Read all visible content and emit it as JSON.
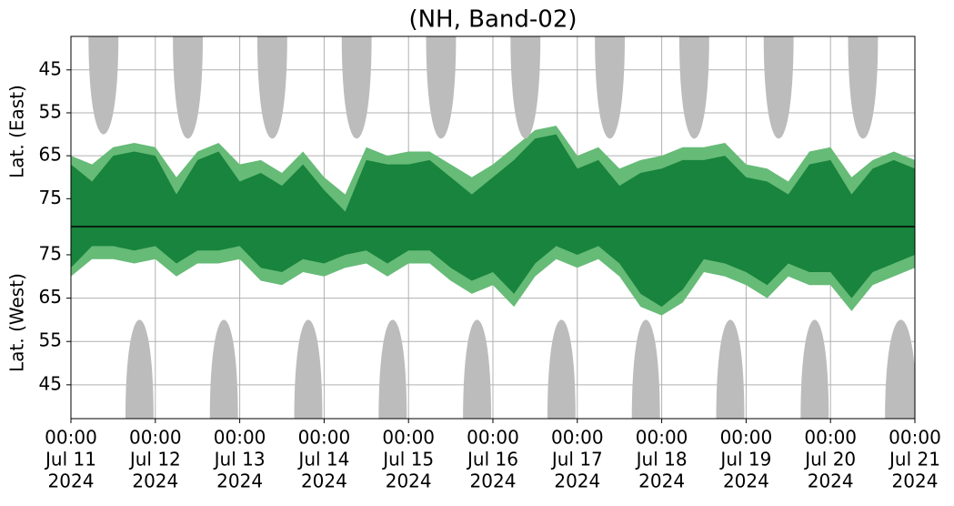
{
  "chart_data": {
    "type": "area",
    "title": "(NH, Band-02)",
    "grid": true,
    "xlim": [
      "2024-07-11 00:00",
      "2024-07-21 00:00"
    ],
    "xticks": [
      {
        "value": "2024-07-11 00:00",
        "label": [
          "00:00",
          "Jul 11",
          "2024"
        ]
      },
      {
        "value": "2024-07-12 00:00",
        "label": [
          "00:00",
          "Jul 12",
          "2024"
        ]
      },
      {
        "value": "2024-07-13 00:00",
        "label": [
          "00:00",
          "Jul 13",
          "2024"
        ]
      },
      {
        "value": "2024-07-14 00:00",
        "label": [
          "00:00",
          "Jul 14",
          "2024"
        ]
      },
      {
        "value": "2024-07-15 00:00",
        "label": [
          "00:00",
          "Jul 15",
          "2024"
        ]
      },
      {
        "value": "2024-07-16 00:00",
        "label": [
          "00:00",
          "Jul 16",
          "2024"
        ]
      },
      {
        "value": "2024-07-17 00:00",
        "label": [
          "00:00",
          "Jul 17",
          "2024"
        ]
      },
      {
        "value": "2024-07-18 00:00",
        "label": [
          "00:00",
          "Jul 18",
          "2024"
        ]
      },
      {
        "value": "2024-07-19 00:00",
        "label": [
          "00:00",
          "Jul 19",
          "2024"
        ]
      },
      {
        "value": "2024-07-20 00:00",
        "label": [
          "00:00",
          "Jul 20",
          "2024"
        ]
      },
      {
        "value": "2024-07-21 00:00",
        "label": [
          "00:00",
          "Jul 21",
          "2024"
        ]
      }
    ],
    "x": [
      "2024-07-11 00:00",
      "2024-07-11 06:00",
      "2024-07-11 12:00",
      "2024-07-11 18:00",
      "2024-07-12 00:00",
      "2024-07-12 06:00",
      "2024-07-12 12:00",
      "2024-07-12 18:00",
      "2024-07-13 00:00",
      "2024-07-13 06:00",
      "2024-07-13 12:00",
      "2024-07-13 18:00",
      "2024-07-14 00:00",
      "2024-07-14 06:00",
      "2024-07-14 12:00",
      "2024-07-14 18:00",
      "2024-07-15 00:00",
      "2024-07-15 06:00",
      "2024-07-15 12:00",
      "2024-07-15 18:00",
      "2024-07-16 00:00",
      "2024-07-16 06:00",
      "2024-07-16 12:00",
      "2024-07-16 18:00",
      "2024-07-17 00:00",
      "2024-07-17 06:00",
      "2024-07-17 12:00",
      "2024-07-17 18:00",
      "2024-07-18 00:00",
      "2024-07-18 06:00",
      "2024-07-18 12:00",
      "2024-07-18 18:00",
      "2024-07-19 00:00",
      "2024-07-19 06:00",
      "2024-07-19 12:00",
      "2024-07-19 18:00",
      "2024-07-20 00:00",
      "2024-07-20 06:00",
      "2024-07-20 12:00",
      "2024-07-20 18:00",
      "2024-07-21 00:00"
    ],
    "panels": [
      {
        "ylabel": "Lat. (East)",
        "ylim": [
          37.2,
          81.5
        ],
        "yticks": [
          45,
          55,
          65,
          75
        ],
        "series": [
          {
            "color": "#66bb77",
            "values": [
              65,
              67,
              63,
              62,
              63,
              70,
              64,
              62,
              67,
              66,
              69,
              64,
              70,
              74,
              63,
              65,
              64,
              64,
              67,
              70,
              67,
              63,
              59,
              58,
              65,
              63,
              68,
              66,
              65,
              63,
              63,
              62,
              67,
              68,
              71,
              64,
              63,
              70,
              66,
              64,
              66
            ]
          },
          {
            "color": "#18843d",
            "values": [
              67,
              71,
              65,
              64,
              65,
              74,
              66,
              64,
              71,
              69,
              72,
              67,
              73,
              78,
              66,
              67,
              67,
              66,
              70,
              74,
              70,
              66,
              61,
              60,
              68,
              66,
              72,
              69,
              68,
              66,
              66,
              65,
              70,
              71,
              74,
              67,
              66,
              74,
              68,
              66,
              68
            ]
          }
        ],
        "masks": {
          "color": "#bcbcbc",
          "spans": [
            {
              "start": "2024-07-11 05:00",
              "end": "2024-07-11 13:30",
              "edge": 60
            },
            {
              "start": "2024-07-12 05:00",
              "end": "2024-07-12 13:30",
              "edge": 61
            },
            {
              "start": "2024-07-13 05:00",
              "end": "2024-07-13 13:30",
              "edge": 61
            },
            {
              "start": "2024-07-14 05:00",
              "end": "2024-07-14 13:30",
              "edge": 61
            },
            {
              "start": "2024-07-15 05:00",
              "end": "2024-07-15 13:30",
              "edge": 61
            },
            {
              "start": "2024-07-16 05:00",
              "end": "2024-07-16 13:30",
              "edge": 61
            },
            {
              "start": "2024-07-17 05:00",
              "end": "2024-07-17 13:30",
              "edge": 61
            },
            {
              "start": "2024-07-18 05:00",
              "end": "2024-07-18 13:30",
              "edge": 61
            },
            {
              "start": "2024-07-19 05:00",
              "end": "2024-07-19 13:30",
              "edge": 61
            },
            {
              "start": "2024-07-20 05:00",
              "end": "2024-07-20 13:30",
              "edge": 61
            }
          ]
        }
      },
      {
        "ylabel": "Lat. (West)",
        "ylim": [
          81.5,
          37.2
        ],
        "yticks": [
          75,
          65,
          55,
          45
        ],
        "series": [
          {
            "color": "#66bb77",
            "values": [
              70,
              74,
              74,
              73,
              74,
              70,
              73,
              73,
              74,
              69,
              68,
              71,
              70,
              72,
              73,
              70,
              73,
              73,
              69,
              66,
              68,
              63,
              70,
              74,
              72,
              74,
              70,
              63,
              61,
              64,
              71,
              70,
              68,
              65,
              70,
              68,
              68,
              62,
              68,
              70,
              72
            ]
          },
          {
            "color": "#18843d",
            "values": [
              72,
              77,
              77,
              76,
              77,
              73,
              76,
              76,
              77,
              72,
              71,
              74,
              73,
              75,
              76,
              73,
              76,
              76,
              72,
              69,
              71,
              66,
              73,
              77,
              75,
              77,
              73,
              66,
              63,
              67,
              74,
              73,
              71,
              68,
              73,
              71,
              71,
              65,
              71,
              73,
              75
            ]
          }
        ],
        "masks": {
          "color": "#bcbcbc",
          "spans": [
            {
              "start": "2024-07-11 15:30",
              "end": "2024-07-11 23:30",
              "edge": 60
            },
            {
              "start": "2024-07-12 15:30",
              "end": "2024-07-12 23:30",
              "edge": 60
            },
            {
              "start": "2024-07-13 15:30",
              "end": "2024-07-13 23:30",
              "edge": 60
            },
            {
              "start": "2024-07-14 15:30",
              "end": "2024-07-14 23:30",
              "edge": 60
            },
            {
              "start": "2024-07-15 15:30",
              "end": "2024-07-15 23:30",
              "edge": 60
            },
            {
              "start": "2024-07-16 15:30",
              "end": "2024-07-16 23:30",
              "edge": 60
            },
            {
              "start": "2024-07-17 15:30",
              "end": "2024-07-17 23:30",
              "edge": 60
            },
            {
              "start": "2024-07-18 15:30",
              "end": "2024-07-18 23:30",
              "edge": 60
            },
            {
              "start": "2024-07-19 15:30",
              "end": "2024-07-19 23:30",
              "edge": 60
            },
            {
              "start": "2024-07-20 15:30",
              "end": "2024-07-21 00:30",
              "edge": 60
            }
          ]
        }
      }
    ]
  }
}
